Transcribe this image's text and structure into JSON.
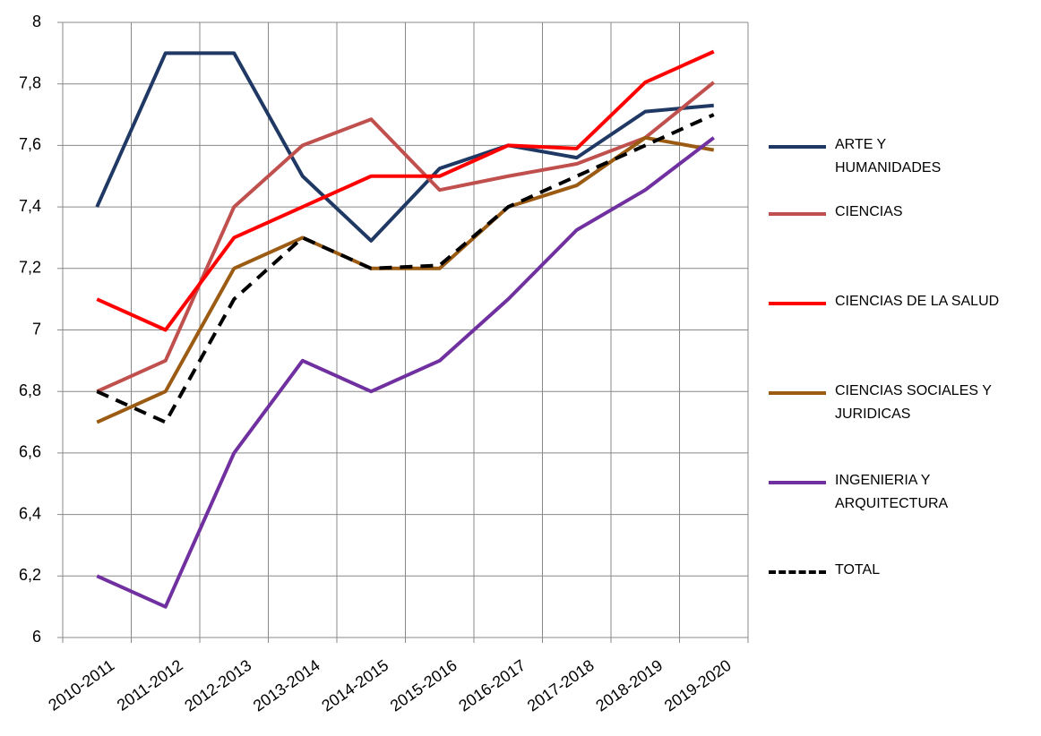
{
  "chart_data": {
    "type": "line",
    "categories": [
      "2010-2011",
      "2011-2012",
      "2012-2013",
      "2013-2014",
      "2014-2015",
      "2015-2016",
      "2016-2017",
      "2017-2018",
      "2018-2019",
      "2019-2020"
    ],
    "series": [
      {
        "name": "ARTE Y HUMANIDADES",
        "color": "#1f3864",
        "values": [
          7.4,
          7.9,
          7.9,
          7.5,
          7.29,
          7.525,
          7.6,
          7.56,
          7.71,
          7.73
        ]
      },
      {
        "name": "CIENCIAS",
        "color": "#c0504d",
        "values": [
          6.8,
          6.9,
          7.4,
          7.6,
          7.685,
          7.455,
          7.5,
          7.54,
          7.625,
          7.805
        ]
      },
      {
        "name": "CIENCIAS DE LA SALUD",
        "color": "#ff0000",
        "values": [
          7.1,
          7.0,
          7.3,
          7.4,
          7.5,
          7.5,
          7.6,
          7.59,
          7.805,
          7.905
        ]
      },
      {
        "name": "CIENCIAS  SOCIALES Y JURIDICAS",
        "color": "#9c5b12",
        "values": [
          6.7,
          6.8,
          7.2,
          7.3,
          7.2,
          7.2,
          7.4,
          7.47,
          7.625,
          7.585
        ]
      },
      {
        "name": "INGENIERIA Y ARQUITECTURA",
        "color": "#7030a0",
        "values": [
          6.2,
          6.1,
          6.6,
          6.9,
          6.8,
          6.9,
          7.1,
          7.325,
          7.455,
          7.625
        ]
      },
      {
        "name": "TOTAL",
        "color": "#000000",
        "dashed": true,
        "values": [
          6.8,
          6.7,
          7.1,
          7.3,
          7.2,
          7.21,
          7.4,
          7.5,
          7.6,
          7.7
        ]
      }
    ],
    "ylim": [
      6,
      8
    ],
    "yticks": [
      6,
      {
        "value": 6.2,
        "label": "6,2"
      },
      {
        "value": 6.4,
        "label": "6,4"
      },
      {
        "value": 6.6,
        "label": "6,6"
      },
      {
        "value": 6.8,
        "label": "6,8"
      },
      7,
      {
        "value": 7.2,
        "label": "7,2"
      },
      {
        "value": 7.4,
        "label": "7,4"
      },
      {
        "value": 7.6,
        "label": "7,6"
      },
      {
        "value": 7.8,
        "label": "7,8"
      },
      8
    ],
    "grid": true,
    "legend": "right"
  }
}
